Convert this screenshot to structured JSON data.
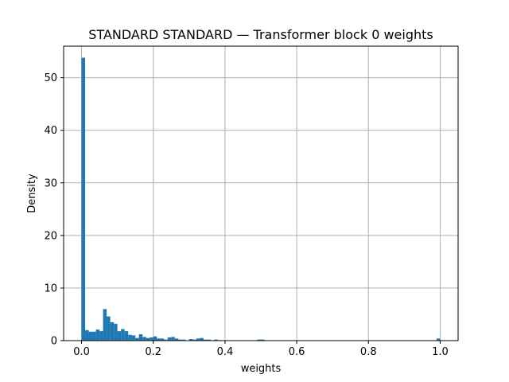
{
  "chart_data": {
    "type": "bar",
    "title": "STANDARD STANDARD — Transformer block 0 weights",
    "xlabel": "weights",
    "ylabel": "Density",
    "xlim": [
      -0.05,
      1.05
    ],
    "ylim": [
      0,
      56
    ],
    "grid": true,
    "bar_color": "#1f77b4",
    "bin_width": 0.01,
    "x_ticks": [
      {
        "value": 0.0,
        "label": "0.0"
      },
      {
        "value": 0.2,
        "label": "0.2"
      },
      {
        "value": 0.4,
        "label": "0.4"
      },
      {
        "value": 0.6,
        "label": "0.6"
      },
      {
        "value": 0.8,
        "label": "0.8"
      },
      {
        "value": 1.0,
        "label": "1.0"
      }
    ],
    "y_ticks": [
      {
        "value": 0,
        "label": "0"
      },
      {
        "value": 10,
        "label": "10"
      },
      {
        "value": 20,
        "label": "20"
      },
      {
        "value": 30,
        "label": "30"
      },
      {
        "value": 40,
        "label": "40"
      },
      {
        "value": 50,
        "label": "50"
      }
    ],
    "bins": [
      {
        "x": 0.0,
        "y": 53.8
      },
      {
        "x": 0.01,
        "y": 2.0
      },
      {
        "x": 0.02,
        "y": 1.7
      },
      {
        "x": 0.03,
        "y": 1.7
      },
      {
        "x": 0.04,
        "y": 2.1
      },
      {
        "x": 0.05,
        "y": 1.8
      },
      {
        "x": 0.06,
        "y": 6.0
      },
      {
        "x": 0.07,
        "y": 4.6
      },
      {
        "x": 0.08,
        "y": 3.5
      },
      {
        "x": 0.09,
        "y": 3.2
      },
      {
        "x": 0.1,
        "y": 1.8
      },
      {
        "x": 0.11,
        "y": 2.2
      },
      {
        "x": 0.12,
        "y": 1.8
      },
      {
        "x": 0.13,
        "y": 1.1
      },
      {
        "x": 0.14,
        "y": 1.0
      },
      {
        "x": 0.15,
        "y": 0.5
      },
      {
        "x": 0.16,
        "y": 1.2
      },
      {
        "x": 0.17,
        "y": 0.7
      },
      {
        "x": 0.18,
        "y": 0.5
      },
      {
        "x": 0.19,
        "y": 0.6
      },
      {
        "x": 0.2,
        "y": 0.8
      },
      {
        "x": 0.21,
        "y": 0.4
      },
      {
        "x": 0.22,
        "y": 0.4
      },
      {
        "x": 0.23,
        "y": 0.2
      },
      {
        "x": 0.24,
        "y": 0.6
      },
      {
        "x": 0.25,
        "y": 0.7
      },
      {
        "x": 0.26,
        "y": 0.4
      },
      {
        "x": 0.27,
        "y": 0.2
      },
      {
        "x": 0.28,
        "y": 0.2
      },
      {
        "x": 0.3,
        "y": 0.3
      },
      {
        "x": 0.31,
        "y": 0.2
      },
      {
        "x": 0.32,
        "y": 0.4
      },
      {
        "x": 0.33,
        "y": 0.5
      },
      {
        "x": 0.34,
        "y": 0.2
      },
      {
        "x": 0.35,
        "y": 0.2
      },
      {
        "x": 0.37,
        "y": 0.2
      },
      {
        "x": 0.38,
        "y": 0.1
      },
      {
        "x": 0.49,
        "y": 0.2
      },
      {
        "x": 0.5,
        "y": 0.2
      },
      {
        "x": 0.99,
        "y": 0.4
      }
    ]
  }
}
